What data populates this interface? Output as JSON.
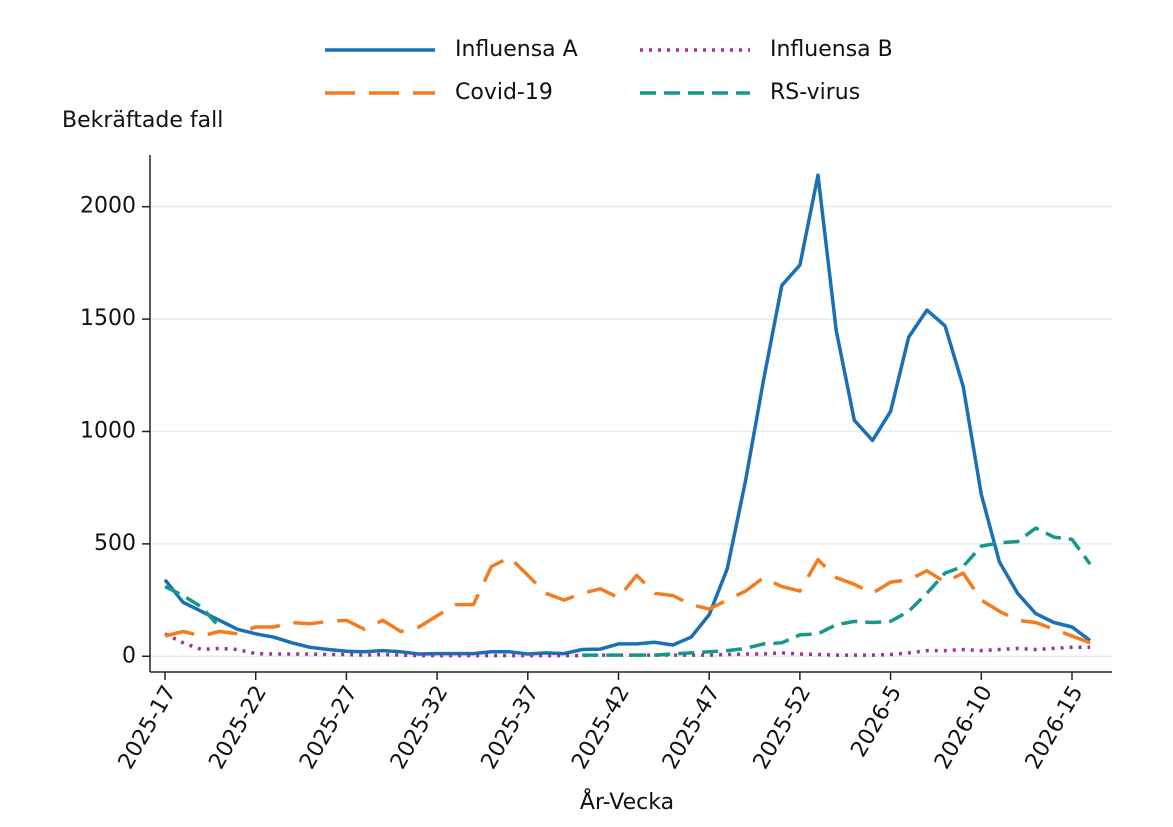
{
  "chart_data": {
    "type": "line",
    "ylabel": "Bekräftade fall",
    "xlabel": "År-Vecka",
    "categories": [
      "2025-17",
      null,
      null,
      null,
      null,
      "2025-22",
      null,
      null,
      null,
      null,
      "2025-27",
      null,
      null,
      null,
      null,
      "2025-32",
      null,
      null,
      null,
      null,
      "2025-37",
      null,
      null,
      null,
      null,
      "2025-42",
      null,
      null,
      null,
      null,
      "2025-47",
      null,
      null,
      null,
      null,
      "2025-52",
      null,
      null,
      null,
      null,
      "2026-5",
      null,
      null,
      null,
      null,
      "2026-10",
      null,
      null,
      null,
      null,
      "2026-15",
      null
    ],
    "series": [
      {
        "name": "Influensa A",
        "color": "#1a6fb5",
        "dash": "solid",
        "values": [
          340,
          240,
          200,
          160,
          120,
          100,
          85,
          60,
          40,
          30,
          22,
          20,
          25,
          20,
          10,
          12,
          12,
          12,
          20,
          20,
          10,
          15,
          12,
          30,
          32,
          55,
          55,
          62,
          50,
          85,
          185,
          390,
          780,
          1230,
          1650,
          1740,
          2140,
          1450,
          1050,
          960,
          1090,
          1420,
          1540,
          1470,
          1200,
          720,
          420,
          280,
          190,
          150,
          130,
          70
        ]
      },
      {
        "name": "Influensa B",
        "color": "#a0309a",
        "dash": "dotted",
        "values": [
          100,
          60,
          30,
          35,
          30,
          12,
          10,
          10,
          10,
          8,
          8,
          5,
          8,
          5,
          3,
          3,
          3,
          3,
          3,
          3,
          3,
          3,
          3,
          3,
          5,
          5,
          5,
          5,
          5,
          5,
          5,
          8,
          10,
          10,
          15,
          10,
          8,
          5,
          5,
          5,
          8,
          15,
          25,
          25,
          30,
          25,
          30,
          35,
          30,
          35,
          40,
          40
        ]
      },
      {
        "name": "Covid-19",
        "color": "#f47c20",
        "dash": "long",
        "values": [
          90,
          110,
          90,
          110,
          100,
          130,
          130,
          150,
          145,
          155,
          160,
          120,
          160,
          110,
          130,
          180,
          230,
          230,
          400,
          440,
          360,
          280,
          250,
          280,
          300,
          260,
          360,
          280,
          270,
          230,
          210,
          250,
          290,
          350,
          310,
          290,
          430,
          350,
          320,
          280,
          330,
          340,
          380,
          330,
          370,
          250,
          200,
          160,
          150,
          120,
          90,
          60
        ]
      },
      {
        "name": "RS-virus",
        "color": "#13998a",
        "dash": "dashed",
        "values": [
          310,
          270,
          220,
          130,
          null,
          null,
          null,
          null,
          null,
          null,
          null,
          null,
          null,
          null,
          null,
          null,
          null,
          null,
          null,
          null,
          null,
          null,
          null,
          5,
          5,
          5,
          5,
          5,
          10,
          15,
          20,
          25,
          35,
          55,
          60,
          95,
          100,
          140,
          155,
          150,
          155,
          200,
          280,
          370,
          400,
          490,
          505,
          510,
          570,
          530,
          520,
          410
        ]
      }
    ],
    "ylim": [
      -70,
      2230
    ],
    "yticks": [
      0,
      500,
      1000,
      1500,
      2000
    ],
    "grid": true
  }
}
